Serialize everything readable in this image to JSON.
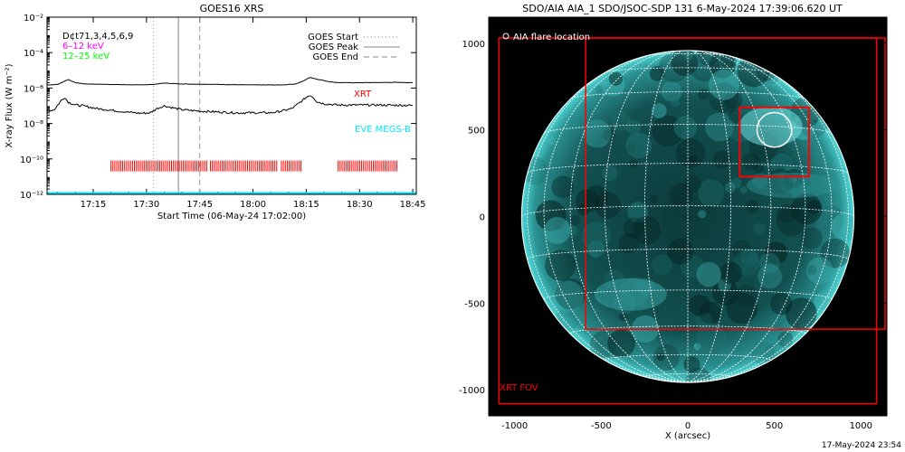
{
  "chart_data": [
    {
      "type": "line",
      "title": "GOES16 XRS",
      "xlabel": "Start Time (06-May-24 17:02:00)",
      "ylabel": "X-ray Flux (W m⁻²)",
      "yscale": "log",
      "xlim": [
        "17:02",
        "18:46"
      ],
      "ylim": [
        1e-12,
        0.01
      ],
      "x_ticks": [
        "17:15",
        "17:30",
        "17:45",
        "18:00",
        "18:15",
        "18:30",
        "18:45"
      ],
      "y_ticks": [
        "10⁻¹²",
        "10⁻¹⁰",
        "10⁻⁸",
        "10⁻⁶",
        "10⁻⁴",
        "10⁻²"
      ],
      "legend_left": [
        {
          "label": "D¢t71,3,4,5,6,9",
          "color": "#000000"
        },
        {
          "label": "6–12 keV",
          "color": "#ff00ff"
        },
        {
          "label": "12–25 keV",
          "color": "#00ff00"
        }
      ],
      "legend_right": [
        {
          "label": "GOES Start",
          "style": "dotted"
        },
        {
          "label": "GOES Peak",
          "style": "solid"
        },
        {
          "label": "GOES End",
          "style": "dashed"
        }
      ],
      "annotations": [
        {
          "label": "XRT",
          "color": "#ff0000"
        },
        {
          "label": "EVE MEGS-B",
          "color": "#00e5ff"
        }
      ],
      "goes_start": "17:32",
      "goes_peak": "17:39",
      "goes_end": "17:45",
      "series": [
        {
          "color": "#000000",
          "x": [
            "17:02",
            "17:05",
            "17:07",
            "17:08",
            "17:10",
            "17:13",
            "17:20",
            "17:28",
            "17:32",
            "17:35",
            "17:40",
            "17:50",
            "18:00",
            "18:08",
            "18:12",
            "18:14",
            "18:16",
            "18:18",
            "18:21",
            "18:23",
            "18:25",
            "18:30",
            "18:40",
            "18:45"
          ],
          "values": [
            1.5e-06,
            1.6e-06,
            2.5e-06,
            3e-06,
            2e-06,
            1.7e-06,
            1.6e-06,
            1.5e-06,
            1.6e-06,
            1.9e-06,
            1.7e-06,
            1.6e-06,
            1.5e-06,
            1.5e-06,
            1.7e-06,
            2.4e-06,
            4e-06,
            3.2e-06,
            2.4e-06,
            2.1e-06,
            2e-06,
            2e-06,
            2.1e-06,
            2e-06
          ]
        },
        {
          "color": "#000000",
          "x": [
            "17:02",
            "17:04",
            "17:06",
            "17:07",
            "17:08",
            "17:10",
            "17:12",
            "17:16",
            "17:22",
            "17:28",
            "17:31",
            "17:33",
            "17:35",
            "17:37",
            "17:40",
            "17:45",
            "17:55",
            "18:05",
            "18:08",
            "18:11",
            "18:13",
            "18:15",
            "18:16",
            "18:17",
            "18:18",
            "18:20",
            "18:22",
            "18:24",
            "18:28",
            "18:35",
            "18:45"
          ],
          "values": [
            5e-08,
            6e-08,
            2e-07,
            3e-07,
            1.6e-07,
            1.1e-07,
            1e-07,
            7e-08,
            5e-08,
            3.8e-08,
            4e-08,
            7e-08,
            1e-07,
            8e-08,
            6e-08,
            5e-08,
            4e-08,
            4e-08,
            5e-08,
            7e-08,
            1.4e-07,
            3e-07,
            4e-07,
            3e-07,
            1.7e-07,
            1.3e-07,
            1.2e-07,
            1.1e-07,
            1.1e-07,
            1.1e-07,
            1.05e-07
          ]
        }
      ],
      "xrt_observations": {
        "color": "#ff0000",
        "level": 4e-11,
        "spans": [
          [
            "17:20",
            "17:47"
          ],
          [
            "17:48",
            "18:07"
          ],
          [
            "18:08",
            "18:14"
          ],
          [
            "18:24",
            "18:41"
          ]
        ]
      },
      "eve_level": 1e-12
    },
    {
      "type": "image",
      "title": "SDO/AIA AIA_1 SDO/JSOC-SDP 131  6-May-2024 17:39:06.620 UT",
      "xlabel": "X (arcsec)",
      "xlim": [
        -1150,
        1150
      ],
      "ylim": [
        -1150,
        1150
      ],
      "x_ticks": [
        -1000,
        -500,
        0,
        500,
        1000
      ],
      "y_ticks": [
        1000,
        500,
        0,
        -500,
        -1000
      ],
      "legend": "AIA flare location",
      "xrt_fov_label": "XRT FOV",
      "fov_box": {
        "x": [
          -1090,
          1090
        ],
        "y": [
          -1080,
          1030
        ]
      },
      "xrt_box": {
        "x": [
          -590,
          1140
        ],
        "y": [
          -650,
          1030
        ]
      },
      "flare_box": {
        "x": [
          300,
          700
        ],
        "y": [
          230,
          630
        ]
      },
      "flare_circle": {
        "x": 500,
        "y": 500,
        "r": 100
      },
      "colors": {
        "frame": "#ff0000",
        "grid": "#ffffff",
        "disk": "#4fd6d6"
      }
    }
  ],
  "footer": {
    "timestamp": "17-May-2024 23:54"
  }
}
